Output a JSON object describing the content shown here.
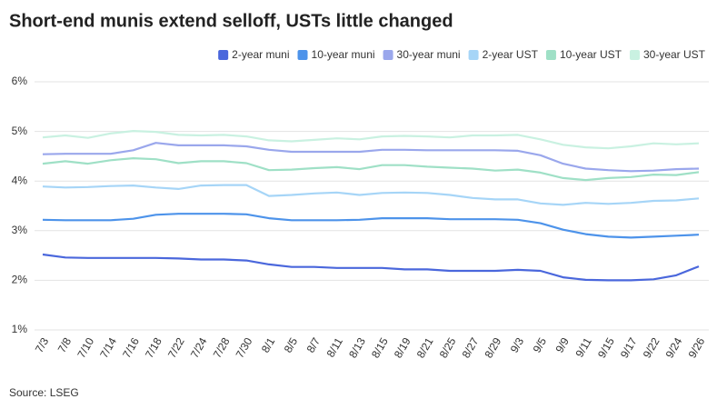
{
  "chart_data": {
    "type": "line",
    "title": "Short-end munis extend selloff, USTs little changed",
    "source": "Source: LSEG",
    "categories": [
      "7/3",
      "7/8",
      "7/10",
      "7/14",
      "7/16",
      "7/18",
      "7/22",
      "7/24",
      "7/28",
      "7/30",
      "8/1",
      "8/5",
      "8/7",
      "8/11",
      "8/13",
      "8/15",
      "8/19",
      "8/21",
      "8/25",
      "8/27",
      "8/29",
      "9/3",
      "9/5",
      "9/9",
      "9/11",
      "9/15",
      "9/17",
      "9/22",
      "9/24",
      "9/26"
    ],
    "series": [
      {
        "name": "2-year muni",
        "color": "#4a67dc",
        "values": [
          2.52,
          2.46,
          2.45,
          2.45,
          2.45,
          2.45,
          2.44,
          2.42,
          2.42,
          2.4,
          2.32,
          2.27,
          2.27,
          2.25,
          2.25,
          2.25,
          2.22,
          2.22,
          2.19,
          2.19,
          2.19,
          2.21,
          2.19,
          2.06,
          2.01,
          2.0,
          2.0,
          2.02,
          2.1,
          2.28
        ]
      },
      {
        "name": "10-year muni",
        "color": "#4d93ea",
        "values": [
          3.22,
          3.21,
          3.21,
          3.21,
          3.24,
          3.32,
          3.34,
          3.34,
          3.34,
          3.33,
          3.25,
          3.21,
          3.21,
          3.21,
          3.22,
          3.25,
          3.25,
          3.25,
          3.23,
          3.23,
          3.23,
          3.22,
          3.15,
          3.02,
          2.93,
          2.88,
          2.86,
          2.88,
          2.9,
          2.92
        ]
      },
      {
        "name": "30-year muni",
        "color": "#9aa7ec",
        "values": [
          4.54,
          4.55,
          4.55,
          4.55,
          4.62,
          4.77,
          4.72,
          4.72,
          4.72,
          4.7,
          4.63,
          4.59,
          4.59,
          4.59,
          4.59,
          4.63,
          4.63,
          4.62,
          4.62,
          4.62,
          4.62,
          4.61,
          4.52,
          4.35,
          4.25,
          4.22,
          4.2,
          4.21,
          4.24,
          4.25
        ]
      },
      {
        "name": "2-year UST",
        "color": "#a6d5f7",
        "values": [
          3.89,
          3.87,
          3.88,
          3.9,
          3.91,
          3.87,
          3.84,
          3.91,
          3.92,
          3.92,
          3.7,
          3.72,
          3.75,
          3.77,
          3.72,
          3.76,
          3.77,
          3.76,
          3.72,
          3.66,
          3.63,
          3.63,
          3.55,
          3.52,
          3.56,
          3.54,
          3.56,
          3.6,
          3.61,
          3.65
        ]
      },
      {
        "name": "10-year UST",
        "color": "#9fe0c6",
        "values": [
          4.35,
          4.4,
          4.35,
          4.42,
          4.46,
          4.44,
          4.36,
          4.4,
          4.4,
          4.36,
          4.22,
          4.23,
          4.26,
          4.28,
          4.24,
          4.32,
          4.32,
          4.29,
          4.27,
          4.25,
          4.21,
          4.23,
          4.17,
          4.06,
          4.02,
          4.06,
          4.08,
          4.13,
          4.12,
          4.18
        ]
      },
      {
        "name": "30-year UST",
        "color": "#c9f1e1",
        "values": [
          4.88,
          4.92,
          4.87,
          4.96,
          5.01,
          4.99,
          4.93,
          4.92,
          4.93,
          4.9,
          4.82,
          4.8,
          4.83,
          4.86,
          4.84,
          4.9,
          4.91,
          4.9,
          4.88,
          4.92,
          4.92,
          4.93,
          4.84,
          4.73,
          4.68,
          4.66,
          4.7,
          4.76,
          4.74,
          4.76
        ]
      }
    ],
    "ylim": [
      1,
      6
    ],
    "yticks": [
      {
        "value": 1,
        "label": "1%"
      },
      {
        "value": 2,
        "label": "2%"
      },
      {
        "value": 3,
        "label": "3%"
      },
      {
        "value": 4,
        "label": "4%"
      },
      {
        "value": 5,
        "label": "5%"
      },
      {
        "value": 6,
        "label": "6%"
      }
    ],
    "grid": true
  }
}
